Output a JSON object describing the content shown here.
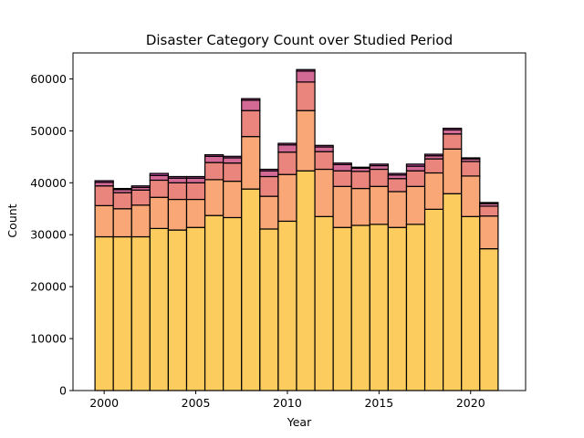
{
  "chart_data": {
    "type": "bar",
    "stacked": true,
    "title": "Disaster Category Count over Studied Period",
    "xlabel": "Year",
    "ylabel": "Count",
    "xlim": [
      1998.3,
      2023.0
    ],
    "ylim": [
      0,
      65000
    ],
    "xticks": [
      2000,
      2005,
      2010,
      2015,
      2020
    ],
    "yticks": [
      0,
      10000,
      20000,
      30000,
      40000,
      50000,
      60000
    ],
    "grid": false,
    "legend": "none",
    "categories": [
      2000,
      2001,
      2002,
      2003,
      2004,
      2005,
      2006,
      2007,
      2008,
      2009,
      2010,
      2011,
      2012,
      2013,
      2014,
      2015,
      2016,
      2017,
      2018,
      2019,
      2020,
      2021
    ],
    "series": [
      {
        "color": "#fdcc5f",
        "values": [
          29600,
          29600,
          29600,
          31200,
          30900,
          31400,
          33700,
          33300,
          38800,
          31100,
          32600,
          42300,
          33500,
          31400,
          31800,
          32000,
          31400,
          32000,
          34900,
          37900,
          33500,
          27300
        ]
      },
      {
        "color": "#f9a777",
        "values": [
          6000,
          5400,
          6100,
          6000,
          5900,
          5400,
          6900,
          7000,
          10100,
          6300,
          9000,
          11600,
          9100,
          7900,
          7100,
          7300,
          6900,
          7300,
          7000,
          8600,
          7800,
          6300
        ]
      },
      {
        "color": "#e9857d",
        "values": [
          3800,
          3100,
          2900,
          3300,
          3200,
          3200,
          3300,
          3500,
          5000,
          3800,
          4300,
          5500,
          3400,
          3000,
          3300,
          3300,
          2500,
          3000,
          2700,
          2900,
          2800,
          1900
        ]
      },
      {
        "color": "#d36a95",
        "values": [
          700,
          600,
          500,
          900,
          900,
          900,
          1200,
          1000,
          2000,
          1100,
          1400,
          2100,
          900,
          1200,
          600,
          700,
          700,
          900,
          600,
          800,
          500,
          500
        ]
      },
      {
        "color": "#b5479a",
        "values": [
          300,
          200,
          300,
          400,
          300,
          300,
          300,
          300,
          300,
          300,
          300,
          300,
          300,
          300,
          200,
          300,
          300,
          400,
          300,
          300,
          200,
          200
        ]
      }
    ]
  }
}
